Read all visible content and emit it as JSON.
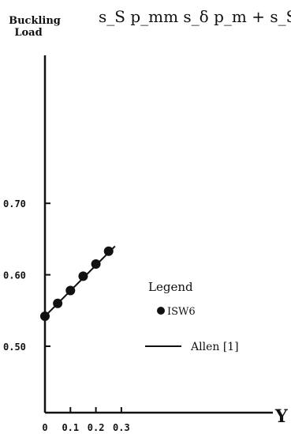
{
  "chart_data": {
    "type": "line",
    "title": "s_S p_mm   s_δ p_m  +  s_S",
    "ylabel": "Buckling Load",
    "xlabel": "Y",
    "xlim": [
      0,
      0.3
    ],
    "ylim": [
      0.45,
      0.72
    ],
    "xticks": [
      0,
      0.1,
      0.2,
      0.3
    ],
    "xtick_labels": [
      "0",
      "0.1",
      "0.2",
      "0.3"
    ],
    "yticks": [
      0.5,
      0.6,
      0.7
    ],
    "ytick_labels": [
      "0.50",
      "0.60",
      "0.70"
    ],
    "grid": false,
    "legend": {
      "title": "Legend",
      "placement": "lower-right",
      "entries": [
        "ISW6",
        "Allen [1]"
      ]
    },
    "series": [
      {
        "name": "ISW6",
        "marker": "circle",
        "x": [
          0,
          0.05,
          0.1,
          0.15,
          0.2,
          0.25
        ],
        "y": [
          0.542,
          0.56,
          0.578,
          0.598,
          0.615,
          0.633
        ]
      },
      {
        "name": "Allen [1]",
        "marker": "line",
        "x": [
          0,
          0.275
        ],
        "y": [
          0.542,
          0.64
        ]
      }
    ]
  }
}
